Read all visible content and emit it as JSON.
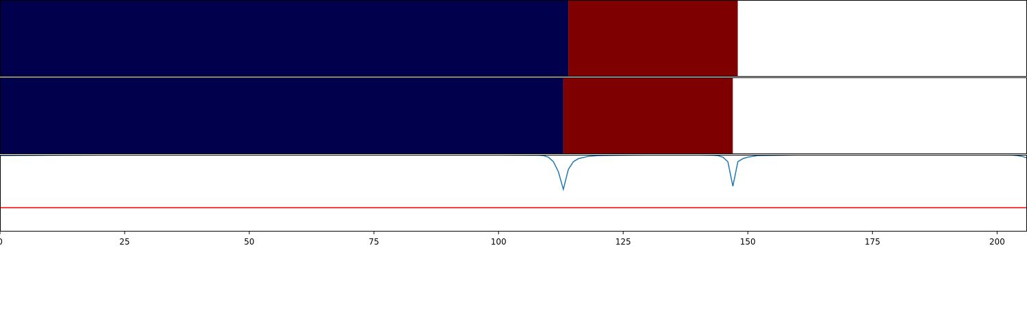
{
  "chart_data": {
    "type": "heatmap",
    "xlim": [
      0,
      206
    ],
    "x_ticks": [
      0,
      25,
      50,
      75,
      100,
      125,
      150,
      175,
      200
    ],
    "x_tick_labels": [
      "0",
      "25",
      "50",
      "75",
      "100",
      "125",
      "150",
      "175",
      "200"
    ],
    "grid": false,
    "legend": "none",
    "rows": [
      {
        "segments": [
          {
            "start": 0,
            "end": 114,
            "color": "#00004c"
          },
          {
            "start": 114,
            "end": 148,
            "color": "#7f0000"
          },
          {
            "start": 148,
            "end": 206,
            "color": "#ffffff"
          }
        ]
      },
      {
        "segments": [
          {
            "start": 0,
            "end": 113,
            "color": "#00004c"
          },
          {
            "start": 113,
            "end": 147,
            "color": "#7f0000"
          },
          {
            "start": 147,
            "end": 206,
            "color": "#ffffff"
          }
        ]
      }
    ],
    "line_panel": {
      "ylim": [
        0,
        1
      ],
      "series": [
        {
          "color": "#1f77b4",
          "x": [
            0,
            10,
            20,
            40,
            60,
            80,
            100,
            108,
            109,
            110,
            111,
            112,
            113,
            114,
            115,
            116,
            118,
            120,
            125,
            130,
            140,
            143,
            144,
            145,
            146,
            147,
            148,
            149,
            150,
            152,
            160,
            180,
            200,
            203,
            204,
            205,
            206
          ],
          "y": [
            0.99,
            0.995,
            0.997,
            0.998,
            0.998,
            0.998,
            0.997,
            0.995,
            0.99,
            0.97,
            0.91,
            0.78,
            0.55,
            0.81,
            0.91,
            0.95,
            0.98,
            0.99,
            0.995,
            0.997,
            0.997,
            0.995,
            0.99,
            0.97,
            0.91,
            0.59,
            0.91,
            0.95,
            0.97,
            0.99,
            0.997,
            0.998,
            0.998,
            0.996,
            0.99,
            0.98,
            0.96
          ]
        },
        {
          "color": "#ff0000",
          "x": [
            0,
            206
          ],
          "y": [
            0.31,
            0.31
          ]
        }
      ]
    }
  }
}
